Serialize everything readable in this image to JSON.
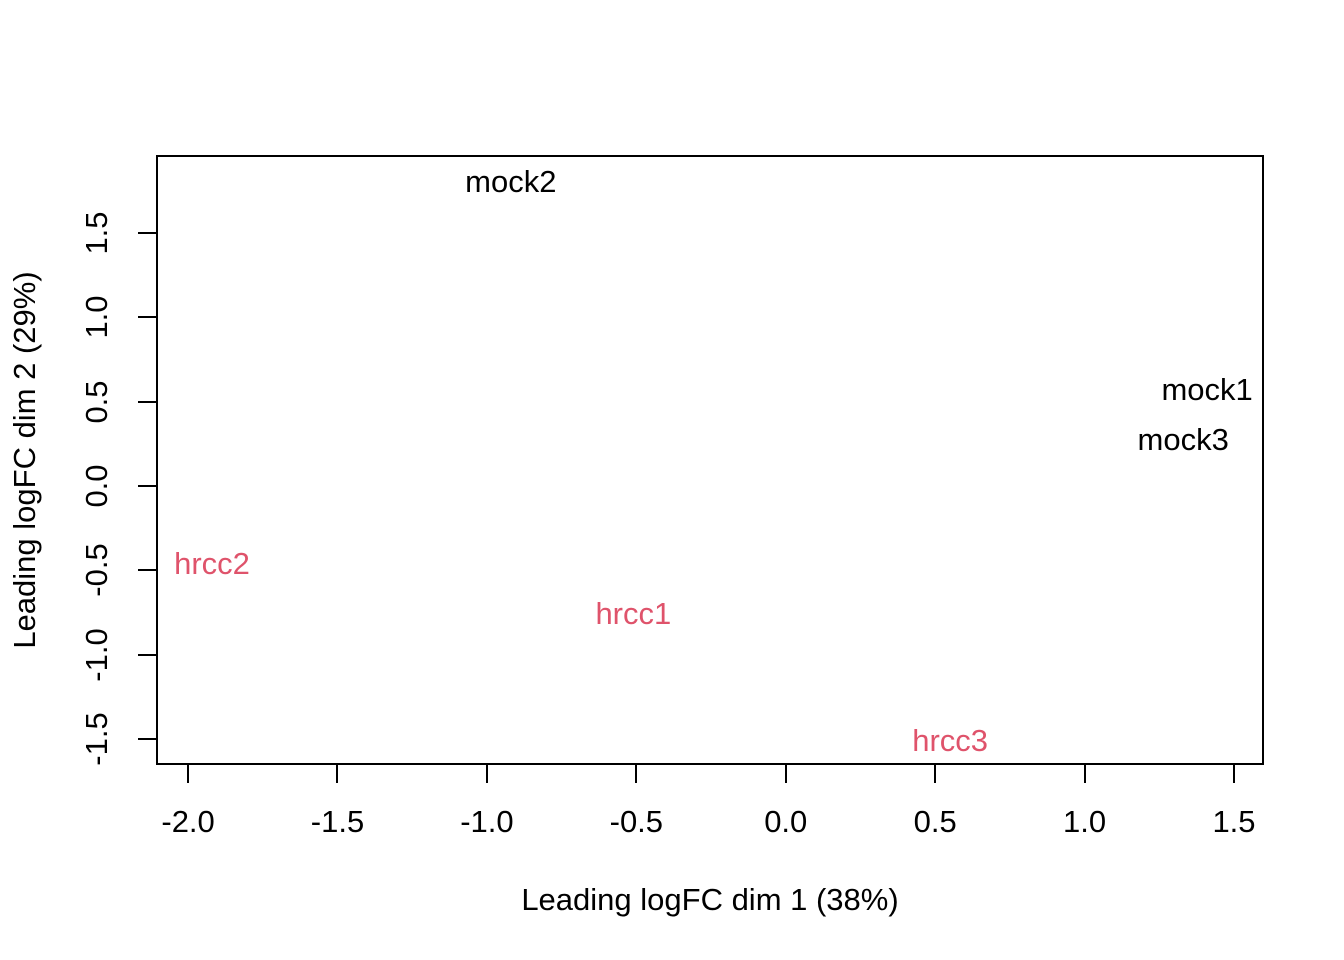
{
  "figure": {
    "background_color": "#FFFFFF",
    "axis_color": "#000000"
  },
  "chart_data": {
    "type": "scatter",
    "subtype": "mds-text-label-plot",
    "title": "",
    "xlabel": "Leading logFC dim 1 (38%)",
    "ylabel": "Leading logFC dim 2 (29%)",
    "xlim": [
      -2.104,
      1.597
    ],
    "ylim": [
      -1.646,
      1.954
    ],
    "x_ticks": [
      -2.0,
      -1.5,
      -1.0,
      -0.5,
      0.0,
      0.5,
      1.0,
      1.5
    ],
    "x_tick_labels": [
      "-2.0",
      "-1.5",
      "-1.0",
      "-0.5",
      "0.0",
      "0.5",
      "1.0",
      "1.5"
    ],
    "y_ticks": [
      -1.5,
      -1.0,
      -0.5,
      0.0,
      0.5,
      1.0,
      1.5
    ],
    "y_tick_labels": [
      "-1.5",
      "-1.0",
      "-0.5",
      "0.0",
      "0.5",
      "1.0",
      "1.5"
    ],
    "grid": false,
    "legend": "none",
    "points_rendered_as": "text-labels",
    "series": [
      {
        "name": "mock",
        "color": "#000000",
        "points": [
          {
            "label": "mock1",
            "x": 1.41,
            "y": 0.57
          },
          {
            "label": "mock2",
            "x": -0.92,
            "y": 1.8
          },
          {
            "label": "mock3",
            "x": 1.33,
            "y": 0.27
          }
        ]
      },
      {
        "name": "hrcc",
        "color": "#DF536B",
        "points": [
          {
            "label": "hrcc1",
            "x": -0.51,
            "y": -0.76
          },
          {
            "label": "hrcc2",
            "x": -1.92,
            "y": -0.46
          },
          {
            "label": "hrcc3",
            "x": 0.55,
            "y": -1.51
          }
        ]
      }
    ]
  }
}
